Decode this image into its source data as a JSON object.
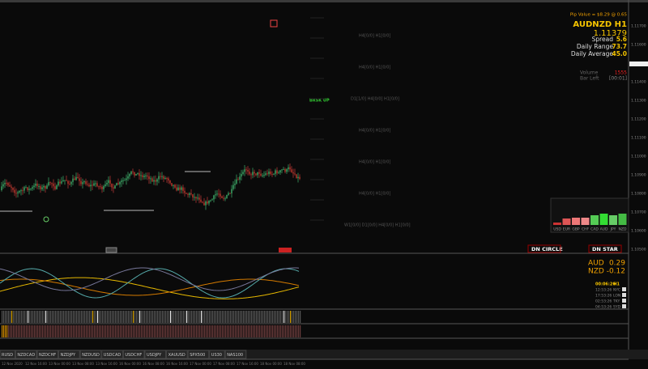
{
  "header": {
    "pip_value": "Pip Value = $8.29 @ 0.65",
    "symbol": "AUDNZD H1",
    "price": "1.11379",
    "stats": [
      {
        "label": "Spread",
        "value": "5.6"
      },
      {
        "label": "Daily Range",
        "value": "73.7"
      },
      {
        "label": "Daily Average",
        "value": "45.0"
      }
    ],
    "volume": {
      "label": "Volume",
      "value": "1555"
    },
    "bar_left": {
      "label": "Bar Left",
      "value": "[00:01]"
    }
  },
  "side_label": "BRSK UP",
  "levels": [
    "H4[0/0] H1[0/0]",
    "H4[0/0] H1[0/0]",
    "D1[1/0] H4[0/0] H1[0/0]",
    "H4[0/0] H1[0/0]",
    "H4[0/0] H1[0/0]",
    "H4[0/0] H1[0/0]",
    "W1[0/0] D1[0/0] H4[0/0] H1[0/0]"
  ],
  "signals": [
    "DN CIRCLE",
    "DN STAR"
  ],
  "strength_currencies": [
    "USD",
    "EUR",
    "GBP",
    "CHF",
    "CAD",
    "AUD",
    "JPY",
    "NZD"
  ],
  "currencies": [
    {
      "name": "AUD",
      "value": "0.29"
    },
    {
      "name": "NZD",
      "value": "-0.12"
    }
  ],
  "clock": {
    "countdown": "00:06:26",
    "tf": "H1",
    "zones": [
      {
        "time": "12:53:26",
        "city": "NYC"
      },
      {
        "time": "17:53:26",
        "city": "LON"
      },
      {
        "time": "02:53:26",
        "city": "TKY"
      },
      {
        "time": "04:53:26",
        "city": "SYD"
      }
    ]
  },
  "price_axis": [
    "1.11700",
    "1.11600",
    "1.11500",
    "1.11400",
    "1.11300",
    "1.11200",
    "1.11100",
    "1.11000",
    "1.10900",
    "1.10800",
    "1.10700",
    "1.10600",
    "1.10500"
  ],
  "symbols": [
    "RUSD",
    "NZDCAD",
    "NZDCHF",
    "NZDJPY",
    "NZDUSD",
    "USDCAD",
    "USDCHF",
    "USDJPY",
    "XAUUSD",
    "SPX500",
    "US30",
    "NAS100"
  ],
  "time_axis": [
    "12 Nov 2020",
    "12 Nov 16:00",
    "13 Nov 00:00",
    "13 Nov 08:00",
    "13 Nov 16:00",
    "16 Nov 00:00",
    "16 Nov 08:00",
    "16 Nov 16:00",
    "17 Nov 00:00",
    "17 Nov 08:00",
    "17 Nov 16:00",
    "18 Nov 00:00",
    "18 Nov 08:00"
  ]
}
